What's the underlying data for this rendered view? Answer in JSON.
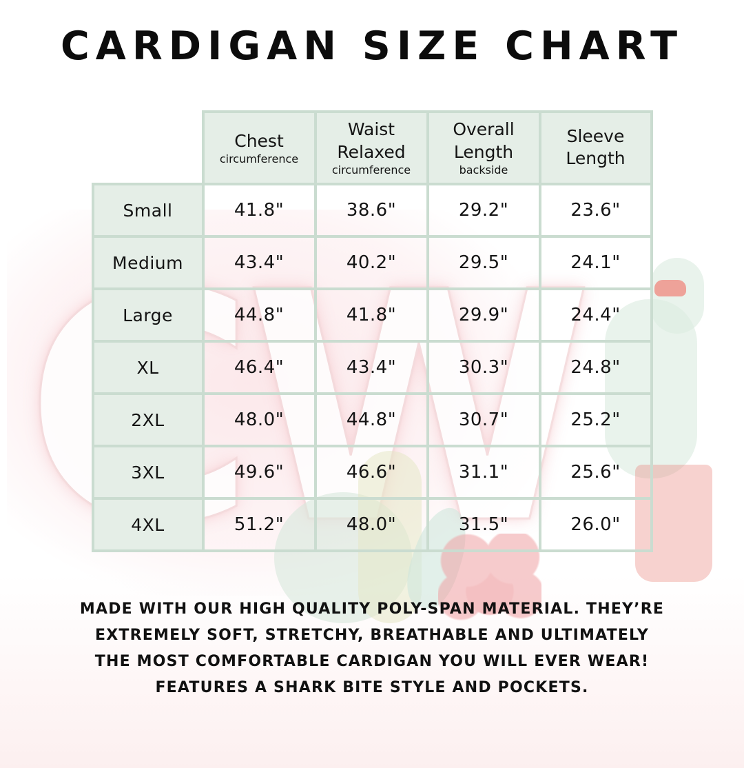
{
  "chart_data": {
    "type": "table",
    "title": "CARDIGAN SIZE CHART",
    "columns": [
      {
        "label": "Chest",
        "sublabel": "circumference"
      },
      {
        "label": "Waist Relaxed",
        "sublabel": "circumference"
      },
      {
        "label": "Overall Length",
        "sublabel": "backside"
      },
      {
        "label": "Sleeve Length",
        "sublabel": ""
      }
    ],
    "rows": [
      {
        "size": "Small",
        "values": [
          "41.8\"",
          "38.6\"",
          "29.2\"",
          "23.6\""
        ]
      },
      {
        "size": "Medium",
        "values": [
          "43.4\"",
          "40.2\"",
          "29.5\"",
          "24.1\""
        ]
      },
      {
        "size": "Large",
        "values": [
          "44.8\"",
          "41.8\"",
          "29.9\"",
          "24.4\""
        ]
      },
      {
        "size": "XL",
        "values": [
          "46.4\"",
          "43.4\"",
          "30.3\"",
          "24.8\""
        ]
      },
      {
        "size": "2XL",
        "values": [
          "48.0\"",
          "44.8\"",
          "30.7\"",
          "25.2\""
        ]
      },
      {
        "size": "3XL",
        "values": [
          "49.6\"",
          "46.6\"",
          "31.1\"",
          "25.6\""
        ]
      },
      {
        "size": "4XL",
        "values": [
          "51.2\"",
          "48.0\"",
          "31.5\"",
          "26.0\""
        ]
      }
    ]
  },
  "footer": {
    "lines": [
      "MADE WITH OUR HIGH QUALITY POLY-SPAN MATERIAL. THEY’RE",
      "EXTREMELY SOFT, STRETCHY, BREATHABLE AND ULTIMATELY",
      "THE MOST COMFORTABLE CARDIGAN YOU WILL EVER WEAR!",
      "FEATURES A SHARK BITE STYLE AND POCKETS."
    ]
  },
  "watermark": {
    "text": "CW"
  },
  "colors": {
    "table_border": "#cadcd0",
    "cell_mint": "#e5eee7",
    "text": "#141414",
    "watermark_pink": "#f3d6d8",
    "watermark_green": "#dcebe1",
    "watermark_coral": "#ef8d85"
  }
}
